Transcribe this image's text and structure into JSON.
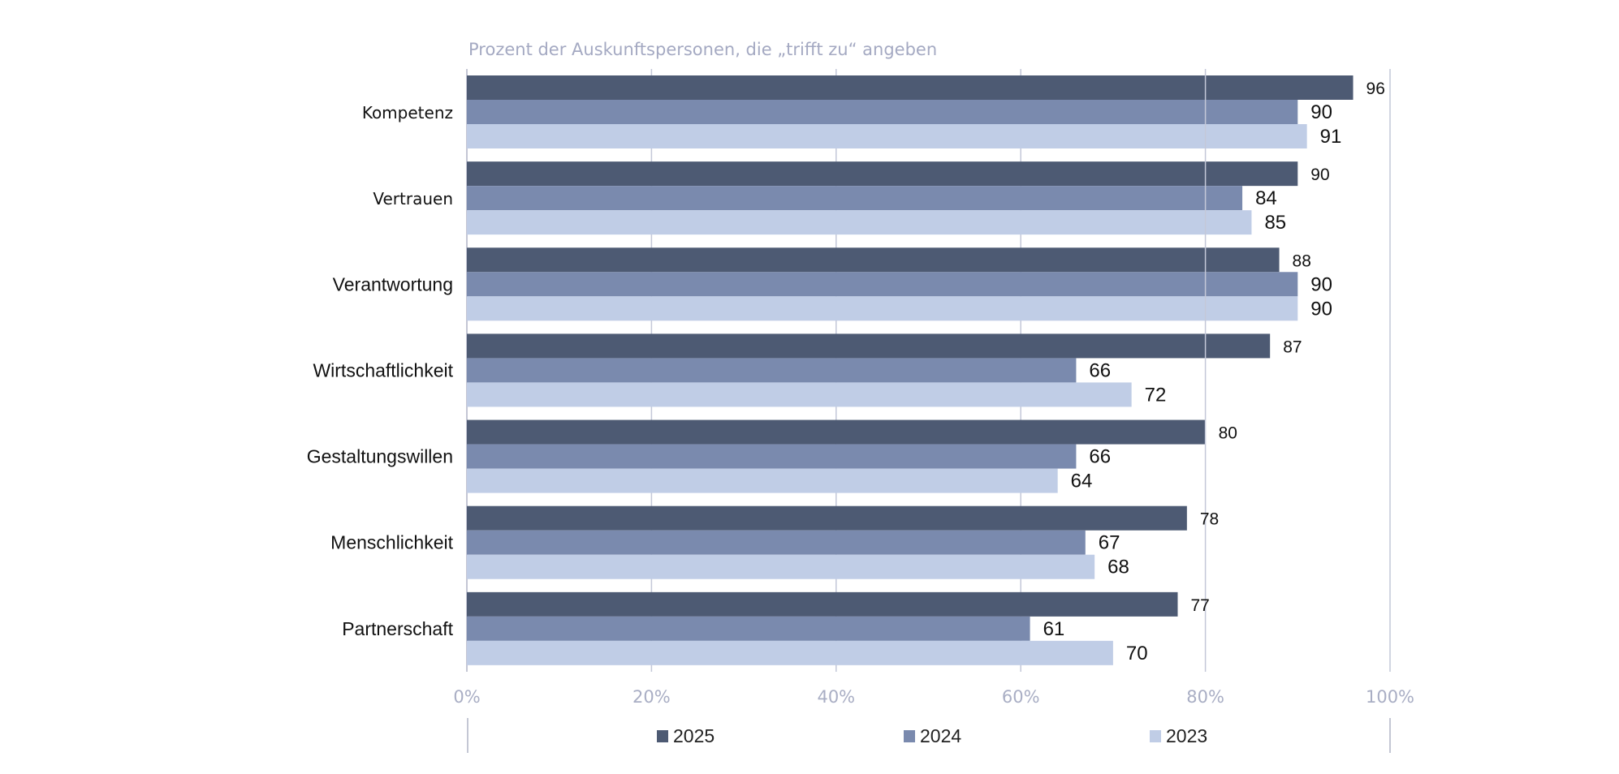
{
  "chart_data": {
    "type": "bar",
    "orientation": "horizontal",
    "title": "Prozent der Auskunftspersonen, die „trifft zu“ angeben",
    "xlabel": "",
    "ylabel": "",
    "xlim": [
      0,
      100
    ],
    "x_ticks": [
      0,
      20,
      40,
      60,
      80,
      100
    ],
    "x_tick_labels": [
      "0%",
      "20%",
      "40%",
      "60%",
      "80%",
      "100%"
    ],
    "grid": true,
    "legend_position": "bottom",
    "categories": [
      "Kompetenz",
      "Vertrauen",
      "Verantwortung",
      "Wirtschaftlichkeit",
      "Gestaltungswillen",
      "Menschlichkeit",
      "Partnerschaft"
    ],
    "series": [
      {
        "name": "2025",
        "color": "#4d5a73",
        "values": [
          96,
          90,
          88,
          87,
          80,
          78,
          77
        ]
      },
      {
        "name": "2024",
        "color": "#7a8aae",
        "values": [
          90,
          84,
          90,
          66,
          66,
          67,
          61
        ]
      },
      {
        "name": "2023",
        "color": "#c0cde6",
        "values": [
          91,
          85,
          90,
          72,
          64,
          68,
          70
        ]
      }
    ],
    "data_labels": true
  }
}
